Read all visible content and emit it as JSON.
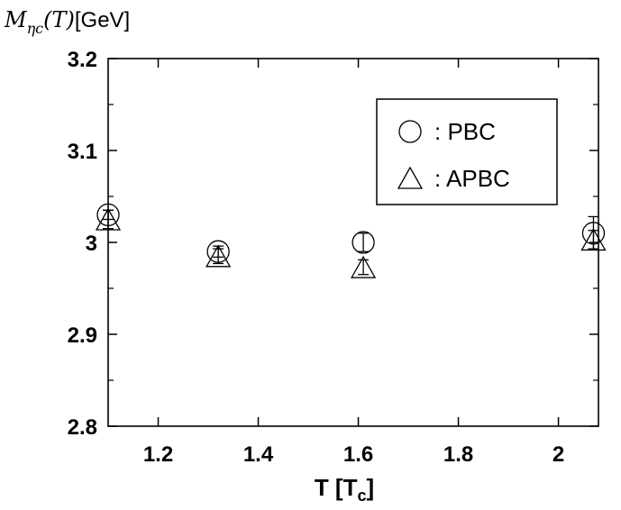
{
  "chart_data": {
    "type": "scatter",
    "ylabel": {
      "symbol": "M",
      "subscript": "ηc",
      "argument": "(T)",
      "unit": "[GeV]"
    },
    "xlabel": {
      "text": "T  [T",
      "subscript": "c",
      "close": "]"
    },
    "xlim": [
      1.1,
      2.08
    ],
    "ylim": [
      2.8,
      3.2
    ],
    "x_ticks": [
      1.2,
      1.4,
      1.6,
      1.8,
      2.0
    ],
    "x_tick_labels": [
      "1.2",
      "1.4",
      "1.6",
      "1.8",
      "2"
    ],
    "y_ticks": [
      2.8,
      2.9,
      3.0,
      3.1,
      3.2
    ],
    "y_tick_labels": [
      "2.8",
      "2.9",
      "3",
      "3.1",
      "3.2"
    ],
    "legend_position": "top-right",
    "series": [
      {
        "name": ": PBC",
        "marker": "circle",
        "points": [
          {
            "x": 1.1,
            "y": 3.03,
            "err": 0.005
          },
          {
            "x": 1.32,
            "y": 2.99,
            "err": 0.006
          },
          {
            "x": 1.61,
            "y": 3.0,
            "err": 0.01
          },
          {
            "x": 2.07,
            "y": 3.01,
            "err": 0.018
          }
        ]
      },
      {
        "name": ": APBC",
        "marker": "triangle",
        "points": [
          {
            "x": 1.1,
            "y": 3.025,
            "err": 0.01
          },
          {
            "x": 1.32,
            "y": 2.985,
            "err": 0.008
          },
          {
            "x": 1.61,
            "y": 2.973,
            "err": 0.008
          },
          {
            "x": 2.07,
            "y": 3.003,
            "err": 0.01
          }
        ]
      }
    ]
  }
}
